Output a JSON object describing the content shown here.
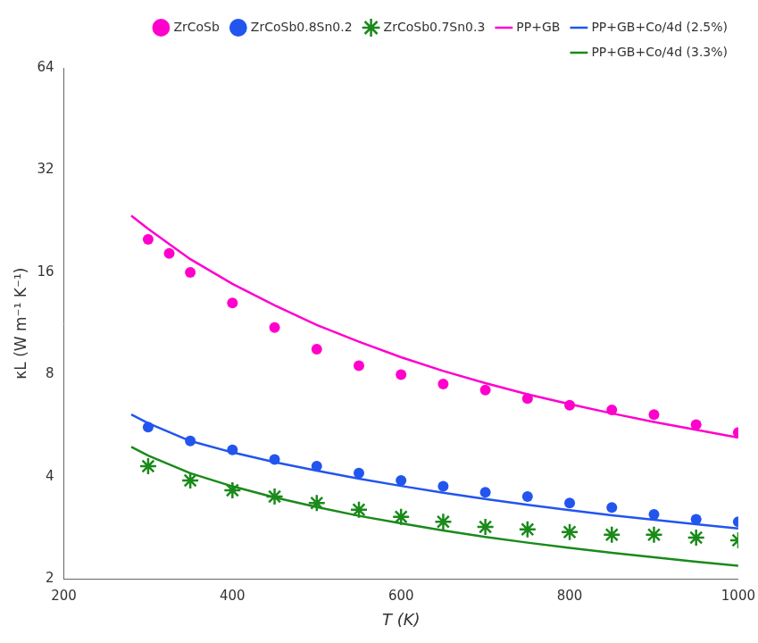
{
  "chart_data": {
    "type": "scatter",
    "xlabel": "T (K)",
    "ylabel": "κL (W m⁻¹ K⁻¹)",
    "xlim": [
      200,
      1000
    ],
    "ylim": [
      2,
      64
    ],
    "xticks": [
      200,
      400,
      600,
      800,
      1000
    ],
    "yticks": [
      2,
      4,
      8,
      16,
      32,
      64
    ],
    "log": "y",
    "grid": false,
    "legend": "upper right",
    "series": [
      {
        "name": "ZrCoSb",
        "type": "scatter",
        "marker": "circle",
        "color": "#FF00CC",
        "x": [
          300,
          325,
          350,
          400,
          450,
          500,
          550,
          600,
          650,
          700,
          750,
          800,
          850,
          900,
          950,
          1000
        ],
        "values": [
          20.0,
          18.2,
          16.0,
          13.0,
          11.0,
          9.5,
          8.5,
          8.0,
          7.5,
          7.2,
          6.8,
          6.5,
          6.3,
          6.1,
          5.7,
          5.4
        ]
      },
      {
        "name": "ZrCoSb0.8Sn0.2",
        "type": "scatter",
        "marker": "circle",
        "color": "#2255EE",
        "x": [
          300,
          350,
          400,
          450,
          500,
          550,
          600,
          650,
          700,
          750,
          800,
          850,
          900,
          950,
          1000
        ],
        "values": [
          5.6,
          5.1,
          4.8,
          4.5,
          4.3,
          4.1,
          3.9,
          3.75,
          3.6,
          3.5,
          3.35,
          3.25,
          3.1,
          3.0,
          2.95
        ]
      },
      {
        "name": "ZrCoSb0.7Sn0.3",
        "type": "scatter",
        "marker": "star",
        "color": "#1A8A1A",
        "x": [
          300,
          350,
          400,
          450,
          500,
          550,
          600,
          650,
          700,
          750,
          800,
          850,
          900,
          950,
          1000
        ],
        "values": [
          4.3,
          3.9,
          3.65,
          3.5,
          3.35,
          3.2,
          3.05,
          2.95,
          2.85,
          2.8,
          2.75,
          2.7,
          2.7,
          2.65,
          2.6
        ]
      },
      {
        "name": "PP+GB",
        "type": "line",
        "line_style": "solid",
        "color": "#FF00CC",
        "x": [
          280,
          300,
          350,
          400,
          450,
          500,
          550,
          600,
          650,
          700,
          750,
          800,
          850,
          900,
          950,
          1000
        ],
        "values": [
          23.5,
          21.5,
          17.5,
          14.8,
          12.8,
          11.2,
          10.0,
          9.0,
          8.2,
          7.55,
          7.0,
          6.55,
          6.15,
          5.8,
          5.5,
          5.22
        ]
      },
      {
        "name": "PP+GB+Co/4d (2.5%)",
        "type": "line",
        "line_style": "solid",
        "color": "#2255EE",
        "x": [
          280,
          300,
          350,
          400,
          450,
          500,
          550,
          600,
          650,
          700,
          750,
          800,
          850,
          900,
          950,
          1000
        ],
        "values": [
          6.1,
          5.75,
          5.1,
          4.72,
          4.42,
          4.17,
          3.95,
          3.76,
          3.59,
          3.44,
          3.31,
          3.19,
          3.08,
          2.99,
          2.9,
          2.82
        ]
      },
      {
        "name": "PP+GB+Co/4d (3.3%)",
        "type": "line",
        "line_style": "solid",
        "color": "#1A8A1A",
        "x": [
          280,
          300,
          350,
          400,
          450,
          500,
          550,
          600,
          650,
          700,
          750,
          800,
          850,
          900,
          950,
          1000
        ],
        "values": [
          4.9,
          4.62,
          4.1,
          3.75,
          3.48,
          3.26,
          3.07,
          2.92,
          2.78,
          2.66,
          2.56,
          2.47,
          2.39,
          2.32,
          2.25,
          2.19
        ]
      }
    ]
  }
}
